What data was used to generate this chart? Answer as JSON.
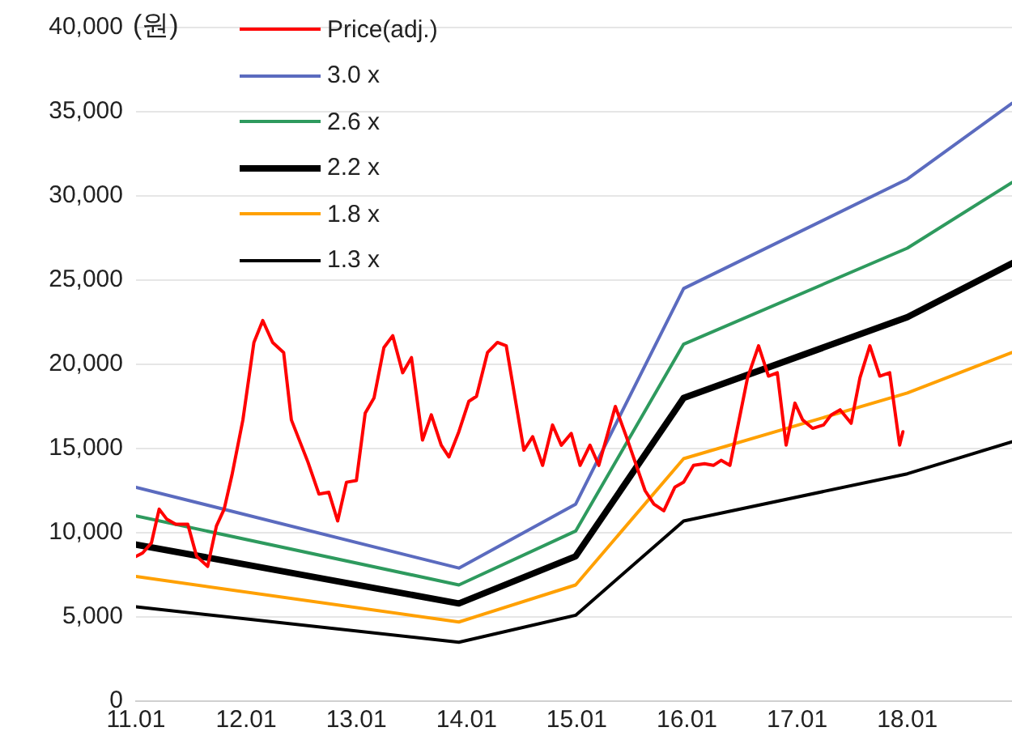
{
  "chart_data": {
    "type": "line",
    "ylabel": "(원)",
    "xlim": [
      11.01,
      18.96
    ],
    "xticks": [
      11.01,
      12.01,
      13.01,
      14.01,
      15.01,
      16.01,
      17.01,
      18.01
    ],
    "ylim": [
      0,
      40000
    ],
    "yticks": [
      {
        "value": 0,
        "label": "0"
      },
      {
        "value": 5000,
        "label": "5,000"
      },
      {
        "value": 10000,
        "label": "10,000"
      },
      {
        "value": 15000,
        "label": "15,000"
      },
      {
        "value": 20000,
        "label": "20,000"
      },
      {
        "value": 25000,
        "label": "25,000"
      },
      {
        "value": 30000,
        "label": "30,000"
      },
      {
        "value": 35000,
        "label": "35,000"
      },
      {
        "value": 40000,
        "label": "40,000"
      }
    ],
    "grid": "y",
    "legend": "top left",
    "marker": "none",
    "line_style": "solid",
    "series": [
      {
        "name": "Price(adj.)",
        "color": "#ff0000",
        "x": [
          11.01,
          11.07,
          11.15,
          11.22,
          11.29,
          11.37,
          11.48,
          11.56,
          11.66,
          11.74,
          11.81,
          11.88,
          11.98,
          12.08,
          12.16,
          12.25,
          12.35,
          12.42,
          12.57,
          12.67,
          12.76,
          12.84,
          12.92,
          13.01,
          13.09,
          13.17,
          13.26,
          13.34,
          13.43,
          13.51,
          13.61,
          13.69,
          13.78,
          13.85,
          13.94,
          14.03,
          14.1,
          14.2,
          14.29,
          14.37,
          14.53,
          14.61,
          14.7,
          14.79,
          14.87,
          14.96,
          15.04,
          15.13,
          15.21,
          15.36,
          15.46,
          15.63,
          15.71,
          15.8,
          15.9,
          15.98,
          16.07,
          16.17,
          16.25,
          16.32,
          16.4,
          16.56,
          16.66,
          16.75,
          16.83,
          16.91,
          16.99,
          17.06,
          17.15,
          17.25,
          17.32,
          17.4,
          17.5,
          17.58,
          17.67,
          17.76,
          17.85,
          17.94,
          17.97
        ],
        "values": [
          8600,
          8800,
          9400,
          11400,
          10800,
          10500,
          10500,
          8600,
          8000,
          10400,
          11400,
          13400,
          16700,
          21300,
          22600,
          21300,
          20700,
          16700,
          14200,
          12300,
          12400,
          10700,
          13000,
          13100,
          17100,
          18000,
          21000,
          21700,
          19500,
          20400,
          15500,
          17000,
          15200,
          14500,
          16000,
          17800,
          18100,
          20700,
          21300,
          21100,
          14900,
          15700,
          14000,
          16400,
          15200,
          15900,
          14000,
          15200,
          14000,
          17500,
          15700,
          12500,
          11700,
          11300,
          12700,
          13000,
          14000,
          14100,
          14000,
          14300,
          14000,
          19200,
          21100,
          19300,
          19500,
          15200,
          17700,
          16700,
          16200,
          16400,
          17000,
          17300,
          16500,
          19200,
          21100,
          19300,
          19500,
          15200,
          16000
        ]
      },
      {
        "name": "3.0 x",
        "color": "#5b6bbf",
        "x": [
          11.01,
          13.94,
          15.0,
          15.98,
          18.01,
          18.96
        ],
        "values": [
          12700,
          7900,
          11700,
          24500,
          31000,
          35500
        ]
      },
      {
        "name": "2.6 x",
        "color": "#2e9a5e",
        "x": [
          11.01,
          13.94,
          15.0,
          15.98,
          18.01,
          18.96
        ],
        "values": [
          11000,
          6900,
          10100,
          21200,
          26900,
          30800
        ]
      },
      {
        "name": "2.2 x",
        "color": "#000000",
        "x": [
          11.01,
          13.94,
          15.0,
          15.98,
          18.01,
          18.96
        ],
        "values": [
          9300,
          5800,
          8600,
          18000,
          22800,
          26000
        ]
      },
      {
        "name": "1.8 x",
        "color": "#ffa000",
        "x": [
          11.01,
          13.94,
          15.0,
          15.98,
          18.01,
          18.96
        ],
        "values": [
          7400,
          4700,
          6900,
          14400,
          18300,
          20700
        ]
      },
      {
        "name": "1.3 x",
        "color": "#000000",
        "x": [
          11.01,
          13.94,
          15.0,
          15.98,
          18.01,
          18.96
        ],
        "values": [
          5600,
          3500,
          5100,
          10700,
          13500,
          15400
        ]
      }
    ]
  }
}
